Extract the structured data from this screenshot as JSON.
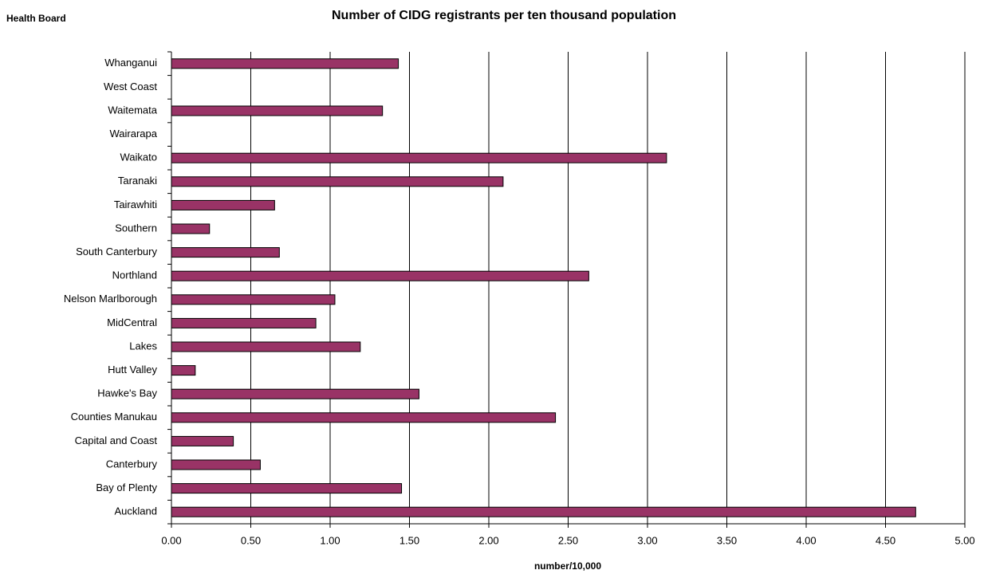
{
  "chart_data": {
    "type": "bar",
    "orientation": "horizontal",
    "title": "Number of CIDG registrants per ten thousand population",
    "y_label": "Health Board",
    "x_label": "number/10,000",
    "categories": [
      "Whanganui",
      "West Coast",
      "Waitemata",
      "Wairarapa",
      "Waikato",
      "Taranaki",
      "Tairawhiti",
      "Southern",
      "South Canterbury",
      "Northland",
      "Nelson Marlborough",
      "MidCentral",
      "Lakes",
      "Hutt Valley",
      "Hawke's Bay",
      "Counties Manukau",
      "Capital and Coast",
      "Canterbury",
      "Bay of Plenty",
      "Auckland"
    ],
    "values": [
      1.43,
      0,
      1.33,
      0,
      3.12,
      2.09,
      0.65,
      0.24,
      0.68,
      2.63,
      1.03,
      0.91,
      1.19,
      0.15,
      1.56,
      2.42,
      0.39,
      0.56,
      1.45,
      4.69
    ],
    "color": "#993366",
    "xlim": [
      0,
      5
    ],
    "xticks": [
      {
        "value": 0,
        "label": "0.00"
      },
      {
        "value": 0.5,
        "label": "0.50"
      },
      {
        "value": 1,
        "label": "1.00"
      },
      {
        "value": 1.5,
        "label": "1.50"
      },
      {
        "value": 2,
        "label": "2.00"
      },
      {
        "value": 2.5,
        "label": "2.50"
      },
      {
        "value": 3,
        "label": "3.00"
      },
      {
        "value": 3.5,
        "label": "3.50"
      },
      {
        "value": 4,
        "label": "4.00"
      },
      {
        "value": 4.5,
        "label": "4.50"
      },
      {
        "value": 5,
        "label": "5.00"
      }
    ],
    "grid": true
  }
}
